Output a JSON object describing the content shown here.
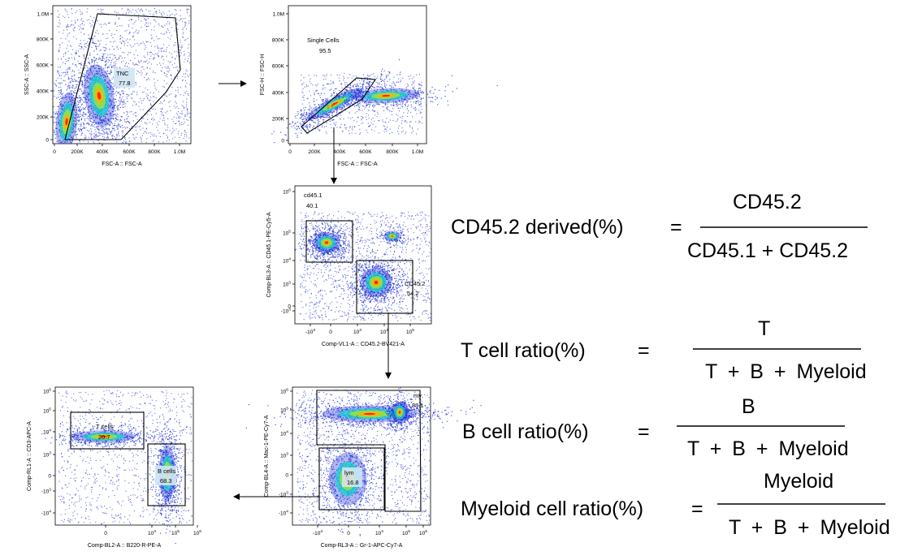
{
  "plots": [
    {
      "id": "p1",
      "y_axis": "SSC-A :: SSC-A",
      "x_axis": "FSC-A :: FSC-A",
      "y_ticks": [
        "1.0M",
        "800K",
        "600K",
        "400K",
        "200K",
        "0"
      ],
      "x_ticks": [
        "0",
        "200K",
        "400K",
        "600K",
        "800K",
        "1.0M"
      ],
      "gates": [
        {
          "name": "TNC",
          "value": "77.8"
        }
      ]
    },
    {
      "id": "p2",
      "y_axis": "FSC-H :: FSC-H",
      "x_axis": "FSC-A :: FSC-A",
      "y_ticks": [
        "1.0M",
        "800K",
        "600K",
        "400K",
        "200K",
        "0"
      ],
      "x_ticks": [
        "0",
        "200K",
        "400K",
        "600K",
        "800K",
        "1.0M"
      ],
      "gates": [
        {
          "name": "Single Cells",
          "value": "95.5"
        }
      ]
    },
    {
      "id": "p3",
      "y_axis": "Comp-BL3-A :: CD45.1-PE-Cy5-A",
      "x_axis": "Comp-VL1-A :: CD45.2-BV421-A",
      "y_ticks": [
        "10^6",
        "10^5",
        "10^4",
        "10^3",
        "0",
        "-10^3"
      ],
      "x_ticks": [
        "-10^3",
        "0",
        "10^3",
        "10^4",
        "10^5"
      ],
      "gates": [
        {
          "name": "cd45.1",
          "value": "40.1"
        },
        {
          "name": "CD45.2",
          "value": "54.2"
        }
      ]
    },
    {
      "id": "p4",
      "y_axis": "Comp-BL4-A :: Mac-1-PE-Cy7-A",
      "x_axis": "Comp-RL3-A :: Gr-1-APC-Cy7-A",
      "y_ticks": [
        "10^6",
        "10^5",
        "10^4",
        "10^3",
        "0",
        "-10^3",
        "-10^4"
      ],
      "x_ticks": [
        "-10^4",
        "0",
        "10^4",
        "10^5",
        "10^6"
      ],
      "gates": [
        {
          "name": "my",
          "value": "83.1"
        },
        {
          "name": "lym",
          "value": "16.8"
        }
      ]
    },
    {
      "id": "p5",
      "y_axis": "Comp-RL1-A :: CD3-APC-A",
      "x_axis": "Comp-BL2-A :: B220-R-PE-A",
      "y_ticks": [
        "10^6",
        "10^5",
        "10^4",
        "10^3",
        "0",
        "-10^3",
        "-10^4"
      ],
      "x_ticks": [
        "0",
        "10^4",
        "10^5",
        "10^6"
      ],
      "gates": [
        {
          "name": "T cells",
          "value": "20.7"
        },
        {
          "name": "B cells",
          "value": "68.3"
        }
      ]
    }
  ],
  "formulas": [
    {
      "label": "CD45.2 derived(%)",
      "eq": "=",
      "numerator": "CD45.2",
      "denominator": "CD45.1 + CD45.2"
    },
    {
      "label": "T cell ratio(%)",
      "eq": "=",
      "numerator": "T",
      "denominator": "T + B + Myeloid"
    },
    {
      "label": "B cell ratio(%)",
      "eq": "=",
      "numerator": "B",
      "denominator": "T + B + Myeloid"
    },
    {
      "label": "Myeloid cell ratio(%)",
      "eq": "=",
      "numerator": "Myeloid",
      "denominator": "T + B + Myeloid"
    }
  ],
  "colors": {
    "axis": "#000000",
    "low": "#1c2fd6",
    "mid": "#18d0d0",
    "high": "#ff2a00",
    "gate": "#000000"
  }
}
